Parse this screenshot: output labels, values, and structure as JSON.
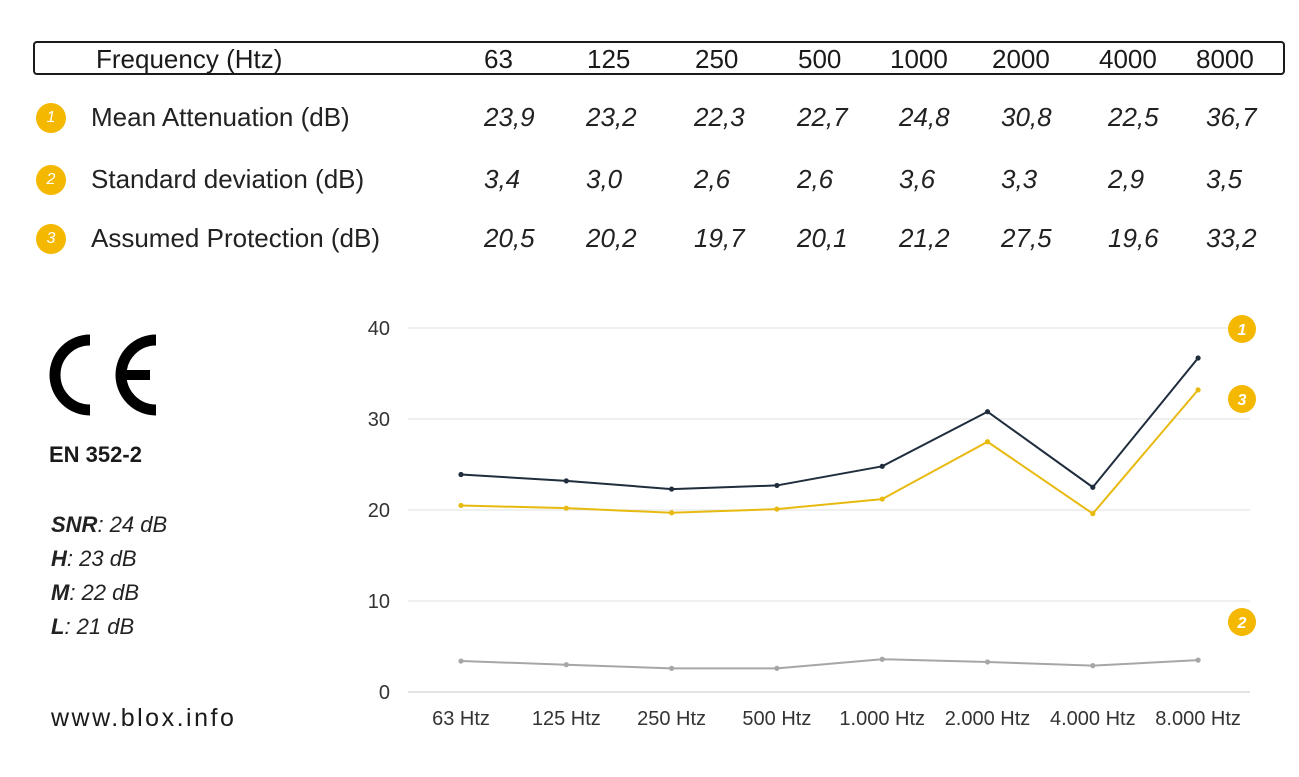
{
  "table": {
    "header_label": "Frequency (Htz)",
    "frequencies": [
      "63",
      "125",
      "250",
      "500",
      "1000",
      "2000",
      "4000",
      "8000"
    ],
    "rows": [
      {
        "badge": "1",
        "label": "Mean Attenuation (dB)",
        "values": [
          "23,9",
          "23,2",
          "22,3",
          "22,7",
          "24,8",
          "30,8",
          "22,5",
          "36,7"
        ]
      },
      {
        "badge": "2",
        "label": "Standard deviation (dB)",
        "values": [
          "3,4",
          "3,0",
          "2,6",
          "2,6",
          "3,6",
          "3,3",
          "2,9",
          "3,5"
        ]
      },
      {
        "badge": "3",
        "label": "Assumed Protection (dB)",
        "values": [
          "20,5",
          "20,2",
          "19,7",
          "20,1",
          "21,2",
          "27,5",
          "19,6",
          "33,2"
        ]
      }
    ]
  },
  "certification": {
    "mark": "CE",
    "standard": "EN 352-2",
    "ratings": [
      {
        "key": "SNR",
        "value": ": 24 dB"
      },
      {
        "key": "H",
        "value": ": 23 dB"
      },
      {
        "key": "M",
        "value": ": 22 dB"
      },
      {
        "key": "L",
        "value": ": 21 dB"
      }
    ]
  },
  "website": "www.blox.info",
  "colors": {
    "accent": "#f5b800",
    "mean_line": "#1f2d3d",
    "protection_line": "#e8b90f",
    "deviation_line": "#a6a6a6"
  },
  "chart_data": {
    "type": "line",
    "categories": [
      "63 Htz",
      "125 Htz",
      "250 Htz",
      "500 Htz",
      "1.000 Htz",
      "2.000 Htz",
      "4.000 Htz",
      "8.000 Htz"
    ],
    "ylim": [
      0,
      40
    ],
    "yticks": [
      0,
      10,
      20,
      30,
      40
    ],
    "grid": true,
    "series": [
      {
        "badge": "1",
        "color": "#1f2d3d",
        "values": [
          23.9,
          23.2,
          22.3,
          22.7,
          24.8,
          30.8,
          22.5,
          36.7
        ]
      },
      {
        "badge": "2",
        "color": "#a6a6a6",
        "values": [
          3.4,
          3.0,
          2.6,
          2.6,
          3.6,
          3.3,
          2.9,
          3.5
        ]
      },
      {
        "badge": "3",
        "color": "#e8b90f",
        "values": [
          20.5,
          20.2,
          19.7,
          20.1,
          21.2,
          27.5,
          19.6,
          33.2
        ]
      }
    ]
  }
}
